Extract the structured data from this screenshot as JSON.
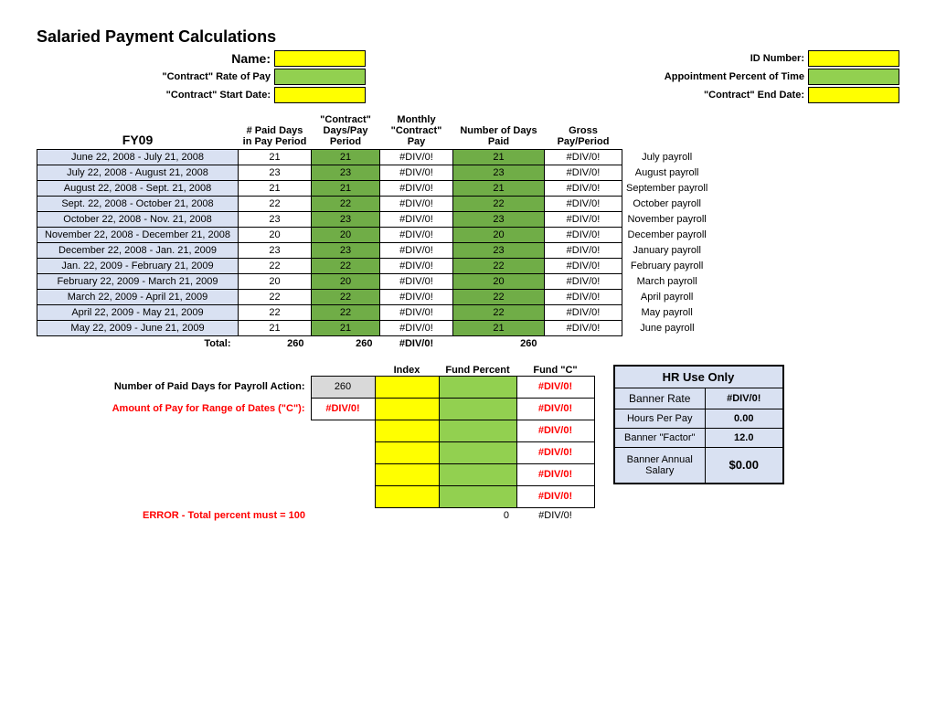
{
  "title": "Salaried Payment Calculations",
  "labels": {
    "name": "Name:",
    "id_number": "ID Number:",
    "rate_of_pay": "\"Contract\" Rate of Pay",
    "appt_pct": "Appointment Percent of Time",
    "start_date": "\"Contract\" Start Date:",
    "end_date": "\"Contract\" End Date:",
    "fy": "FY09",
    "col_paid_days": "# Paid Days in Pay Period",
    "col_contract_days": "\"Contract\" Days/Pay Period",
    "col_monthly_pay": "Monthly \"Contract\" Pay",
    "col_num_days": "Number of Days Paid",
    "col_gross": "Gross Pay/Period",
    "total": "Total:",
    "paid_days_action": "Number of Paid Days for Payroll Action:",
    "amount_pay_c": "Amount of Pay for Range of Dates (\"C\"):",
    "index": "Index",
    "fund_pct": "Fund Percent",
    "fund_c": "Fund \"C\"",
    "hr_use": "HR Use Only",
    "banner_rate": "Banner Rate",
    "hours_per_pay": "Hours Per Pay",
    "banner_factor": "Banner \"Factor\"",
    "banner_annual": "Banner Annual Salary",
    "error": "ERROR - Total percent must = 100"
  },
  "colors": {
    "yellow": "#ffff00",
    "green": "#70ad47",
    "green_light": "#92d050",
    "blue_light": "#d9e1f2",
    "gray": "#d9d9d9",
    "red": "#ff0000",
    "white": "#ffffff",
    "black": "#000000"
  },
  "rows": [
    {
      "period": "June 22, 2008 - July 21, 2008",
      "paid": 21,
      "contract": 21,
      "monthly": "#DIV/0!",
      "numdays": 21,
      "gross": "#DIV/0!",
      "note": "July payroll"
    },
    {
      "period": "July 22, 2008 - August 21, 2008",
      "paid": 23,
      "contract": 23,
      "monthly": "#DIV/0!",
      "numdays": 23,
      "gross": "#DIV/0!",
      "note": "August payroll"
    },
    {
      "period": "August 22, 2008 - Sept. 21, 2008",
      "paid": 21,
      "contract": 21,
      "monthly": "#DIV/0!",
      "numdays": 21,
      "gross": "#DIV/0!",
      "note": "September payroll"
    },
    {
      "period": "Sept. 22, 2008 - October 21, 2008",
      "paid": 22,
      "contract": 22,
      "monthly": "#DIV/0!",
      "numdays": 22,
      "gross": "#DIV/0!",
      "note": "October payroll"
    },
    {
      "period": "October 22, 2008 - Nov. 21, 2008",
      "paid": 23,
      "contract": 23,
      "monthly": "#DIV/0!",
      "numdays": 23,
      "gross": "#DIV/0!",
      "note": "November payroll"
    },
    {
      "period": "November 22, 2008 - December 21, 2008",
      "paid": 20,
      "contract": 20,
      "monthly": "#DIV/0!",
      "numdays": 20,
      "gross": "#DIV/0!",
      "note": "December payroll"
    },
    {
      "period": "December 22, 2008 - Jan. 21, 2009",
      "paid": 23,
      "contract": 23,
      "monthly": "#DIV/0!",
      "numdays": 23,
      "gross": "#DIV/0!",
      "note": "January payroll"
    },
    {
      "period": "Jan. 22, 2009 - February 21, 2009",
      "paid": 22,
      "contract": 22,
      "monthly": "#DIV/0!",
      "numdays": 22,
      "gross": "#DIV/0!",
      "note": "February payroll"
    },
    {
      "period": "February 22, 2009 - March 21, 2009",
      "paid": 20,
      "contract": 20,
      "monthly": "#DIV/0!",
      "numdays": 20,
      "gross": "#DIV/0!",
      "note": "March payroll"
    },
    {
      "period": "March 22, 2009 - April 21, 2009",
      "paid": 22,
      "contract": 22,
      "monthly": "#DIV/0!",
      "numdays": 22,
      "gross": "#DIV/0!",
      "note": "April payroll"
    },
    {
      "period": "April 22, 2009 - May 21, 2009",
      "paid": 22,
      "contract": 22,
      "monthly": "#DIV/0!",
      "numdays": 22,
      "gross": "#DIV/0!",
      "note": "May payroll"
    },
    {
      "period": "May 22, 2009 - June 21, 2009",
      "paid": 21,
      "contract": 21,
      "monthly": "#DIV/0!",
      "numdays": 21,
      "gross": "#DIV/0!",
      "note": "June payroll"
    }
  ],
  "totals": {
    "paid": 260,
    "contract": 260,
    "monthly": "#DIV/0!",
    "numdays": 260
  },
  "paid_days_action_val": 260,
  "amount_c_val": "#DIV/0!",
  "fund_rows": [
    {
      "c": "#DIV/0!"
    },
    {
      "c": "#DIV/0!"
    },
    {
      "c": "#DIV/0!"
    },
    {
      "c": "#DIV/0!"
    },
    {
      "c": "#DIV/0!"
    },
    {
      "c": "#DIV/0!"
    }
  ],
  "fund_totals": {
    "pct": 0,
    "c": "#DIV/0!"
  },
  "hr": {
    "banner_rate": "#DIV/0!",
    "hours": "0.00",
    "factor": "12.0",
    "annual": "$0.00"
  }
}
